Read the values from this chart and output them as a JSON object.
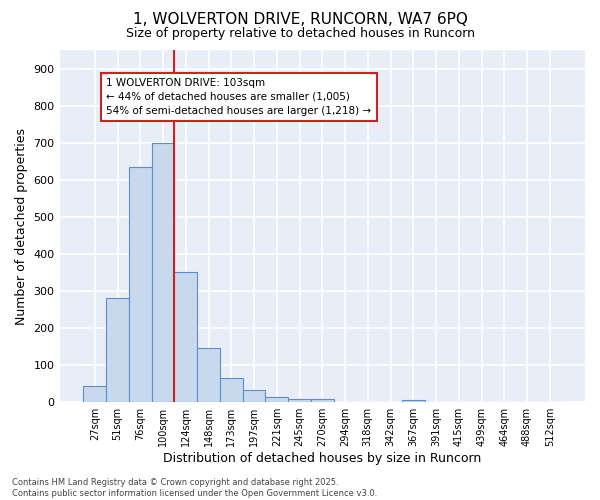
{
  "title1": "1, WOLVERTON DRIVE, RUNCORN, WA7 6PQ",
  "title2": "Size of property relative to detached houses in Runcorn",
  "xlabel": "Distribution of detached houses by size in Runcorn",
  "ylabel": "Number of detached properties",
  "categories": [
    "27sqm",
    "51sqm",
    "76sqm",
    "100sqm",
    "124sqm",
    "148sqm",
    "173sqm",
    "197sqm",
    "221sqm",
    "245sqm",
    "270sqm",
    "294sqm",
    "318sqm",
    "342sqm",
    "367sqm",
    "391sqm",
    "415sqm",
    "439sqm",
    "464sqm",
    "488sqm",
    "512sqm"
  ],
  "values": [
    45,
    280,
    635,
    700,
    350,
    145,
    65,
    32,
    14,
    10,
    8,
    0,
    0,
    0,
    6,
    0,
    0,
    0,
    0,
    0,
    0
  ],
  "bar_fill_color": "#c9d9ed",
  "bar_edge_color": "#5b8fc9",
  "vline_color": "#cc2222",
  "vline_x": 3.5,
  "annotation_text": "1 WOLVERTON DRIVE: 103sqm\n← 44% of detached houses are smaller (1,005)\n54% of semi-detached houses are larger (1,218) →",
  "annotation_box_facecolor": "#ffffff",
  "annotation_border_color": "#cc2222",
  "ylim": [
    0,
    950
  ],
  "yticks": [
    0,
    100,
    200,
    300,
    400,
    500,
    600,
    700,
    800,
    900
  ],
  "bg_color": "#ffffff",
  "plot_bg_color": "#e8eef8",
  "grid_color": "#ffffff",
  "footer1": "Contains HM Land Registry data © Crown copyright and database right 2025.",
  "footer2": "Contains public sector information licensed under the Open Government Licence v3.0."
}
